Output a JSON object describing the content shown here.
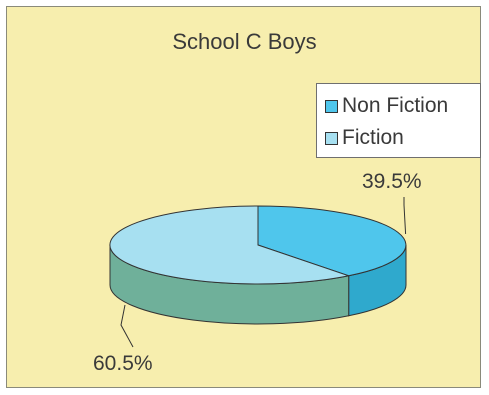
{
  "chart_data": {
    "type": "pie",
    "title": "School C Boys",
    "categories": [
      "Non Fiction",
      "Fiction"
    ],
    "values": [
      39.5,
      60.5
    ],
    "data_labels": [
      "39.5%",
      "60.5%"
    ],
    "legend_position": "top-right",
    "style": "3d",
    "colors": {
      "Non Fiction": "#4fc6ec",
      "Fiction": "#a7e0f1",
      "Fiction_side": "#6fb09a",
      "Non Fiction_side": "#2fa9cd"
    }
  },
  "background_color": "#f7eeae"
}
